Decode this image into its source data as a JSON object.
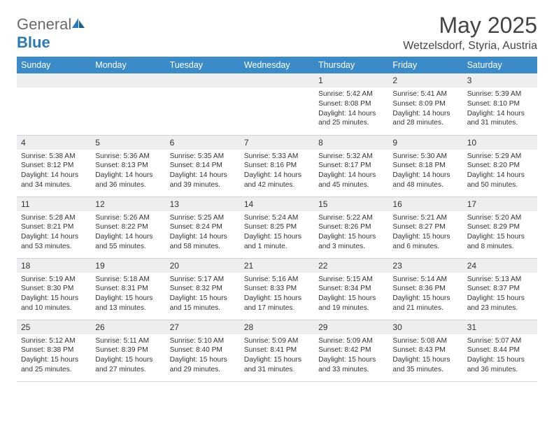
{
  "brand": {
    "general": "General",
    "blue": "Blue"
  },
  "title": "May 2025",
  "location": "Wetzelsdorf, Styria, Austria",
  "colors": {
    "header_bg": "#3b8bc8",
    "header_text": "#ffffff",
    "daynum_bg": "#eceeef",
    "border": "#cfd4d9",
    "brand_gray": "#6a6a6a",
    "brand_blue": "#2a7ab9"
  },
  "weekdays": [
    "Sunday",
    "Monday",
    "Tuesday",
    "Wednesday",
    "Thursday",
    "Friday",
    "Saturday"
  ],
  "first_weekday_index": 4,
  "days": [
    {
      "n": 1,
      "sunrise": "5:42 AM",
      "sunset": "8:08 PM",
      "daylight": "14 hours and 25 minutes."
    },
    {
      "n": 2,
      "sunrise": "5:41 AM",
      "sunset": "8:09 PM",
      "daylight": "14 hours and 28 minutes."
    },
    {
      "n": 3,
      "sunrise": "5:39 AM",
      "sunset": "8:10 PM",
      "daylight": "14 hours and 31 minutes."
    },
    {
      "n": 4,
      "sunrise": "5:38 AM",
      "sunset": "8:12 PM",
      "daylight": "14 hours and 34 minutes."
    },
    {
      "n": 5,
      "sunrise": "5:36 AM",
      "sunset": "8:13 PM",
      "daylight": "14 hours and 36 minutes."
    },
    {
      "n": 6,
      "sunrise": "5:35 AM",
      "sunset": "8:14 PM",
      "daylight": "14 hours and 39 minutes."
    },
    {
      "n": 7,
      "sunrise": "5:33 AM",
      "sunset": "8:16 PM",
      "daylight": "14 hours and 42 minutes."
    },
    {
      "n": 8,
      "sunrise": "5:32 AM",
      "sunset": "8:17 PM",
      "daylight": "14 hours and 45 minutes."
    },
    {
      "n": 9,
      "sunrise": "5:30 AM",
      "sunset": "8:18 PM",
      "daylight": "14 hours and 48 minutes."
    },
    {
      "n": 10,
      "sunrise": "5:29 AM",
      "sunset": "8:20 PM",
      "daylight": "14 hours and 50 minutes."
    },
    {
      "n": 11,
      "sunrise": "5:28 AM",
      "sunset": "8:21 PM",
      "daylight": "14 hours and 53 minutes."
    },
    {
      "n": 12,
      "sunrise": "5:26 AM",
      "sunset": "8:22 PM",
      "daylight": "14 hours and 55 minutes."
    },
    {
      "n": 13,
      "sunrise": "5:25 AM",
      "sunset": "8:24 PM",
      "daylight": "14 hours and 58 minutes."
    },
    {
      "n": 14,
      "sunrise": "5:24 AM",
      "sunset": "8:25 PM",
      "daylight": "15 hours and 1 minute."
    },
    {
      "n": 15,
      "sunrise": "5:22 AM",
      "sunset": "8:26 PM",
      "daylight": "15 hours and 3 minutes."
    },
    {
      "n": 16,
      "sunrise": "5:21 AM",
      "sunset": "8:27 PM",
      "daylight": "15 hours and 6 minutes."
    },
    {
      "n": 17,
      "sunrise": "5:20 AM",
      "sunset": "8:29 PM",
      "daylight": "15 hours and 8 minutes."
    },
    {
      "n": 18,
      "sunrise": "5:19 AM",
      "sunset": "8:30 PM",
      "daylight": "15 hours and 10 minutes."
    },
    {
      "n": 19,
      "sunrise": "5:18 AM",
      "sunset": "8:31 PM",
      "daylight": "15 hours and 13 minutes."
    },
    {
      "n": 20,
      "sunrise": "5:17 AM",
      "sunset": "8:32 PM",
      "daylight": "15 hours and 15 minutes."
    },
    {
      "n": 21,
      "sunrise": "5:16 AM",
      "sunset": "8:33 PM",
      "daylight": "15 hours and 17 minutes."
    },
    {
      "n": 22,
      "sunrise": "5:15 AM",
      "sunset": "8:34 PM",
      "daylight": "15 hours and 19 minutes."
    },
    {
      "n": 23,
      "sunrise": "5:14 AM",
      "sunset": "8:36 PM",
      "daylight": "15 hours and 21 minutes."
    },
    {
      "n": 24,
      "sunrise": "5:13 AM",
      "sunset": "8:37 PM",
      "daylight": "15 hours and 23 minutes."
    },
    {
      "n": 25,
      "sunrise": "5:12 AM",
      "sunset": "8:38 PM",
      "daylight": "15 hours and 25 minutes."
    },
    {
      "n": 26,
      "sunrise": "5:11 AM",
      "sunset": "8:39 PM",
      "daylight": "15 hours and 27 minutes."
    },
    {
      "n": 27,
      "sunrise": "5:10 AM",
      "sunset": "8:40 PM",
      "daylight": "15 hours and 29 minutes."
    },
    {
      "n": 28,
      "sunrise": "5:09 AM",
      "sunset": "8:41 PM",
      "daylight": "15 hours and 31 minutes."
    },
    {
      "n": 29,
      "sunrise": "5:09 AM",
      "sunset": "8:42 PM",
      "daylight": "15 hours and 33 minutes."
    },
    {
      "n": 30,
      "sunrise": "5:08 AM",
      "sunset": "8:43 PM",
      "daylight": "15 hours and 35 minutes."
    },
    {
      "n": 31,
      "sunrise": "5:07 AM",
      "sunset": "8:44 PM",
      "daylight": "15 hours and 36 minutes."
    }
  ],
  "labels": {
    "sunrise": "Sunrise:",
    "sunset": "Sunset:",
    "daylight": "Daylight:"
  }
}
